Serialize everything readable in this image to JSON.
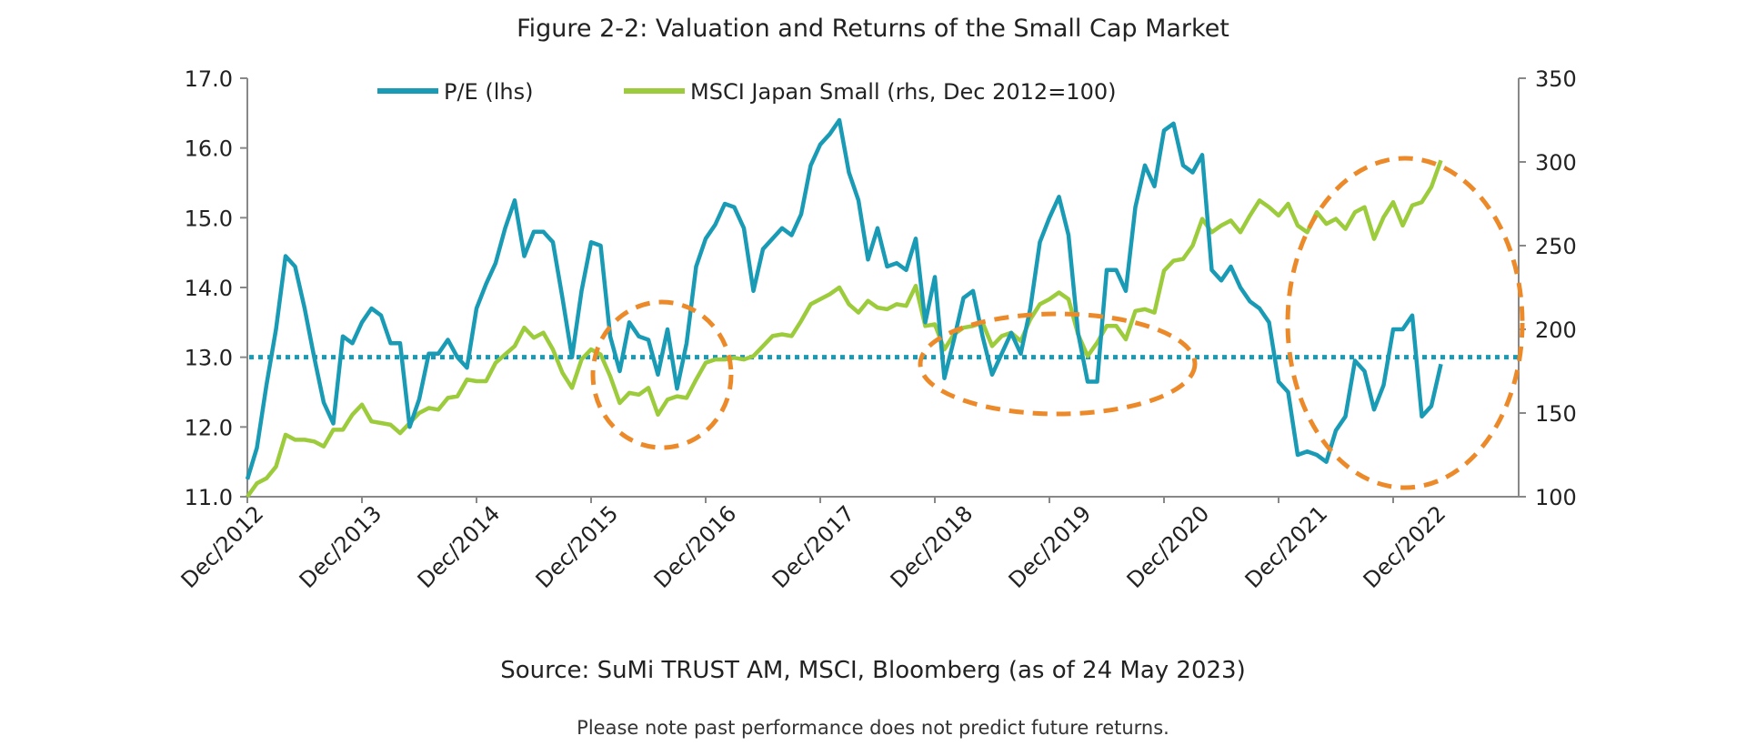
{
  "title": "Figure 2-2: Valuation and Returns of the Small Cap Market",
  "source": "Source: SuMi TRUST AM, MSCI, Bloomberg (as of 24 May 2023)",
  "note": "Please note past performance does not predict future returns.",
  "chart_data": {
    "type": "line",
    "title": "Figure 2-2: Valuation and Returns of the Small Cap Market",
    "legend_placement": "top",
    "grid": false,
    "colors": {
      "pe": "#1a9bb5",
      "msci": "#9ccb3b",
      "annotation": "#ec8a2a"
    },
    "x_tick_labels": [
      "Dec/2012",
      "Dec/2013",
      "Dec/2014",
      "Dec/2015",
      "Dec/2016",
      "Dec/2017",
      "Dec/2018",
      "Dec/2019",
      "Dec/2020",
      "Dec/2021",
      "Dec/2022"
    ],
    "y_left": {
      "ylim": [
        11.0,
        17.0
      ],
      "ticks": [
        "11.0",
        "12.0",
        "13.0",
        "14.0",
        "15.0",
        "16.0",
        "17.0"
      ]
    },
    "y_right": {
      "ylim": [
        100,
        350
      ],
      "ticks": [
        "100",
        "150",
        "200",
        "250",
        "300",
        "350"
      ]
    },
    "reference_line": {
      "axis": "left",
      "value": 13.0,
      "style": "dotted"
    },
    "annotations": [
      {
        "shape": "dashed-ellipse",
        "around": "2016"
      },
      {
        "shape": "dashed-ellipse",
        "around": "2019"
      },
      {
        "shape": "dashed-ellipse",
        "around": "2022"
      }
    ],
    "x": [
      "2012-12",
      "2013-01",
      "2013-02",
      "2013-03",
      "2013-04",
      "2013-05",
      "2013-06",
      "2013-07",
      "2013-08",
      "2013-09",
      "2013-10",
      "2013-11",
      "2013-12",
      "2014-01",
      "2014-02",
      "2014-03",
      "2014-04",
      "2014-05",
      "2014-06",
      "2014-07",
      "2014-08",
      "2014-09",
      "2014-10",
      "2014-11",
      "2014-12",
      "2015-01",
      "2015-02",
      "2015-03",
      "2015-04",
      "2015-05",
      "2015-06",
      "2015-07",
      "2015-08",
      "2015-09",
      "2015-10",
      "2015-11",
      "2015-12",
      "2016-01",
      "2016-02",
      "2016-03",
      "2016-04",
      "2016-05",
      "2016-06",
      "2016-07",
      "2016-08",
      "2016-09",
      "2016-10",
      "2016-11",
      "2016-12",
      "2017-01",
      "2017-02",
      "2017-03",
      "2017-04",
      "2017-05",
      "2017-06",
      "2017-07",
      "2017-08",
      "2017-09",
      "2017-10",
      "2017-11",
      "2017-12",
      "2018-01",
      "2018-02",
      "2018-03",
      "2018-04",
      "2018-05",
      "2018-06",
      "2018-07",
      "2018-08",
      "2018-09",
      "2018-10",
      "2018-11",
      "2018-12",
      "2019-01",
      "2019-02",
      "2019-03",
      "2019-04",
      "2019-05",
      "2019-06",
      "2019-07",
      "2019-08",
      "2019-09",
      "2019-10",
      "2019-11",
      "2019-12",
      "2020-01",
      "2020-02",
      "2020-03",
      "2020-04",
      "2020-05",
      "2020-06",
      "2020-07",
      "2020-08",
      "2020-09",
      "2020-10",
      "2020-11",
      "2020-12",
      "2021-01",
      "2021-02",
      "2021-03",
      "2021-04",
      "2021-05",
      "2021-06",
      "2021-07",
      "2021-08",
      "2021-09",
      "2021-10",
      "2021-11",
      "2021-12",
      "2022-01",
      "2022-02",
      "2022-03",
      "2022-04",
      "2022-05",
      "2022-06",
      "2022-07",
      "2022-08",
      "2022-09",
      "2022-10",
      "2022-11",
      "2022-12",
      "2023-01",
      "2023-02",
      "2023-03",
      "2023-04",
      "2023-05"
    ],
    "series": [
      {
        "name": "P/E (lhs)",
        "axis": "left",
        "values": [
          11.25,
          11.7,
          12.6,
          13.4,
          14.45,
          14.3,
          13.7,
          13.0,
          12.35,
          12.05,
          13.3,
          13.2,
          13.5,
          13.7,
          13.6,
          13.2,
          13.2,
          12.0,
          12.4,
          13.05,
          13.05,
          13.25,
          13.0,
          12.85,
          13.7,
          14.05,
          14.35,
          14.85,
          15.25,
          14.45,
          14.8,
          14.8,
          14.65,
          13.85,
          13.0,
          13.95,
          14.65,
          14.6,
          13.3,
          12.8,
          13.5,
          13.3,
          13.25,
          12.75,
          13.4,
          12.55,
          13.2,
          14.3,
          14.7,
          14.9,
          15.2,
          15.15,
          14.85,
          13.95,
          14.55,
          14.7,
          14.85,
          14.75,
          15.05,
          15.75,
          16.05,
          16.2,
          16.4,
          15.65,
          15.25,
          14.4,
          14.85,
          14.3,
          14.35,
          14.25,
          14.7,
          13.5,
          14.15,
          12.7,
          13.25,
          13.85,
          13.95,
          13.3,
          12.75,
          13.05,
          13.35,
          13.05,
          13.7,
          14.65,
          15.0,
          15.3,
          14.75,
          13.35,
          12.65,
          12.65,
          14.25,
          14.25,
          13.95,
          15.15,
          15.75,
          15.45,
          16.25,
          16.35,
          15.75,
          15.65,
          15.9,
          14.25,
          14.1,
          14.3,
          14.0,
          13.8,
          13.7,
          13.5,
          12.65,
          12.5,
          11.6,
          11.65,
          11.6,
          11.5,
          11.95,
          12.15,
          12.95,
          12.8,
          12.25,
          12.6,
          13.4,
          13.4,
          13.6,
          12.15,
          12.3,
          12.9
        ]
      },
      {
        "name": "MSCI Japan Small (rhs, Dec 2012=100)",
        "axis": "right",
        "values": [
          100,
          108,
          111,
          118,
          137,
          134,
          134,
          133,
          130,
          140,
          140,
          149,
          155,
          145,
          144,
          143,
          138,
          144,
          150,
          153,
          152,
          159,
          160,
          170,
          169,
          169,
          180,
          185,
          190,
          201,
          195,
          198,
          188,
          174,
          165,
          182,
          188,
          185,
          172,
          156,
          162,
          161,
          165,
          149,
          158,
          160,
          159,
          170,
          180,
          182,
          182,
          183,
          182,
          184,
          190,
          196,
          197,
          196,
          205,
          215,
          218,
          221,
          225,
          215,
          210,
          217,
          213,
          212,
          215,
          214,
          226,
          202,
          203,
          188,
          197,
          201,
          202,
          204,
          190,
          196,
          198,
          193,
          206,
          215,
          218,
          222,
          218,
          197,
          184,
          192,
          202,
          202,
          194,
          211,
          212,
          210,
          235,
          241,
          242,
          250,
          266,
          258,
          262,
          265,
          258,
          268,
          277,
          273,
          268,
          275,
          262,
          258,
          270,
          263,
          266,
          260,
          270,
          273,
          254,
          267,
          276,
          262,
          274,
          276,
          285,
          301
        ]
      }
    ]
  }
}
